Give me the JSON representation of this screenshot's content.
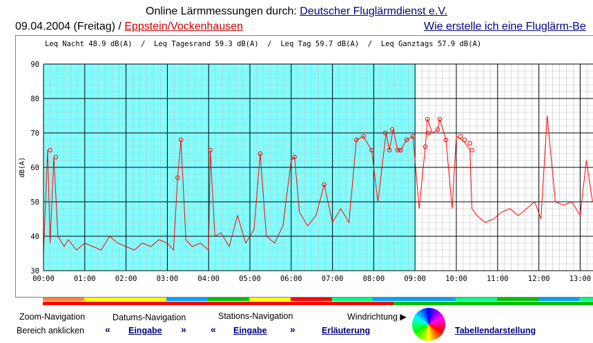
{
  "header": {
    "title_prefix": "Online Lärmmessungen durch:",
    "title_link": "Deutscher Fluglärmdienst e.V.",
    "date": "09.04.2004 (Freitag) /",
    "station": "Eppstein/Vockenhausen",
    "help_link": "Wie erstelle ich eine Fluglärm-Be"
  },
  "stats_line": "Leq Nacht 48.9 dB(A)  /  Leq Tagesrand 59.3 dB(A)  /  Leq Tag 59.7 dB(A)  /  Leq Ganztags 57.9 dB(A)",
  "colors": {
    "night_bg": "#80ffff",
    "line": "#ff0000",
    "marker": "#ff0000",
    "grid_major": "#000000",
    "grid_minor": "#c0c0c0",
    "link": "#000080",
    "station_link": "#cc0000"
  },
  "chart_data": {
    "type": "line",
    "ylabel": "dB(A)",
    "ylim": [
      30,
      90
    ],
    "yticks": [
      "30",
      "40",
      "50",
      "60",
      "70",
      "80",
      "90"
    ],
    "xlim_hours": [
      0,
      13.3
    ],
    "xticks": [
      "00:00",
      "01:00",
      "02:00",
      "03:00",
      "04:00",
      "05:00",
      "06:00",
      "07:00",
      "08:00",
      "09:00",
      "10:00",
      "11:00",
      "12:00",
      "13:00"
    ],
    "grid": true,
    "shaded_until_hour": 9,
    "series": [
      {
        "x": [
          0,
          0.1,
          0.16,
          0.25,
          0.35,
          0.5,
          0.6,
          0.8,
          1.0,
          1.2,
          1.4,
          1.6,
          1.8,
          2.0,
          2.2,
          2.4,
          2.6,
          2.8,
          3.0,
          3.15,
          3.25,
          3.33,
          3.45,
          3.6,
          3.8,
          4.0,
          4.04,
          4.15,
          4.3,
          4.5,
          4.7,
          4.9,
          5.1,
          5.25,
          5.4,
          5.6,
          5.8,
          6.0,
          6.08,
          6.2,
          6.4,
          6.6,
          6.8,
          7.0,
          7.2,
          7.4,
          7.58,
          7.75,
          7.95,
          8.1,
          8.3,
          8.38,
          8.47,
          8.58,
          8.65,
          8.8,
          8.95,
          9.1,
          9.25,
          9.3,
          9.42,
          9.55,
          9.6,
          9.75,
          9.9,
          10.0,
          10.13,
          10.22,
          10.33,
          10.38,
          10.5,
          10.7,
          10.9,
          11.1,
          11.3,
          11.5,
          11.7,
          11.9,
          12.05,
          12.2,
          12.4,
          12.6,
          12.8,
          13.0,
          13.15,
          13.3
        ],
        "y": [
          35,
          65,
          38,
          63,
          40,
          37,
          39,
          36,
          38,
          37,
          36,
          40,
          38,
          37,
          36,
          38,
          37,
          39,
          38,
          36,
          57,
          68,
          39,
          37,
          38,
          36,
          65,
          40,
          41,
          37,
          46,
          38,
          42,
          64,
          40,
          38,
          43,
          62,
          63,
          47,
          43,
          46,
          55,
          44,
          48,
          44,
          68,
          69,
          65,
          50,
          70,
          65,
          71,
          65,
          65,
          68,
          69,
          48,
          66,
          74,
          70,
          71,
          74,
          68,
          48,
          69,
          68,
          67,
          65,
          48,
          46,
          44,
          45,
          47,
          48,
          46,
          48,
          50,
          45,
          75,
          50,
          49,
          50,
          46,
          62,
          50
        ]
      }
    ],
    "markers": {
      "x": [
        0.16,
        0.3,
        3.25,
        3.33,
        4.04,
        5.25,
        6.08,
        6.8,
        7.58,
        7.75,
        7.95,
        8.28,
        8.38,
        8.45,
        8.58,
        8.65,
        8.8,
        8.95,
        9.25,
        9.3,
        9.33,
        9.55,
        9.6,
        9.75,
        10.1,
        10.2,
        10.33,
        10.38
      ],
      "y": [
        65,
        63,
        57,
        68,
        65,
        64,
        63,
        55,
        68,
        69,
        65,
        70,
        65,
        71,
        65,
        65,
        68,
        69,
        66,
        74,
        70,
        71,
        74,
        68,
        69,
        68,
        67,
        65
      ]
    }
  },
  "bands": {
    "top": [
      "#ff8040",
      "#ffff00",
      "#ffff00",
      "#00a0ff",
      "#00c000",
      "#ffff00",
      "#ff0000",
      "#00ff80",
      "#00a0ff",
      "#00a0ff",
      "#00ff80",
      "#00c000",
      "#00a0ff",
      "#00ff80"
    ],
    "bottom_red_until_hour": 8.5,
    "bottom_rest": "#00c000"
  },
  "footer": {
    "zoom_label_1": "Zoom-Navigation",
    "zoom_label_2": "Bereich anklicken",
    "datums_label": "Datums-Navigation",
    "stations_label": "Stations-Navigation",
    "datums_link": "Eingabe",
    "stations_link": "Eingabe",
    "erlaeuterung": "Erläuterung",
    "wind_label": "Windrichtung ▶",
    "table_link": "Tabellendarstellung",
    "arrow": "«",
    "arrow_fwd": "»"
  }
}
